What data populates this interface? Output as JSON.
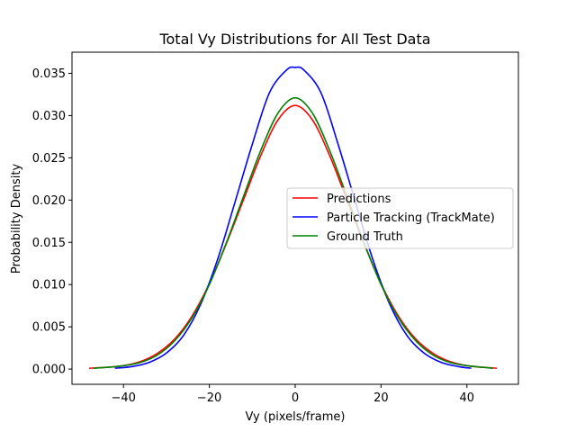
{
  "chart_data": {
    "type": "line",
    "title": "Total Vy Distributions for All Test Data",
    "xlabel": "Vy (pixels/frame)",
    "ylabel": "Probability Density",
    "xlim": [
      -52,
      52
    ],
    "ylim": [
      -0.0018,
      0.0375
    ],
    "xticks": [
      -40,
      -20,
      0,
      20,
      40
    ],
    "xtick_labels": [
      "−40",
      "−20",
      "0",
      "20",
      "40"
    ],
    "yticks": [
      0.0,
      0.005,
      0.01,
      0.015,
      0.02,
      0.025,
      0.03,
      0.035
    ],
    "ytick_labels": [
      "0.000",
      "0.005",
      "0.010",
      "0.015",
      "0.020",
      "0.025",
      "0.030",
      "0.035"
    ],
    "grid": false,
    "legend_position": "center-right",
    "series": [
      {
        "name": "Predictions",
        "color": "#ff0000",
        "x": [
          -48,
          -44,
          -40,
          -36,
          -32,
          -28,
          -24,
          -20,
          -16,
          -12,
          -8,
          -4,
          0,
          4,
          8,
          12,
          16,
          20,
          24,
          28,
          32,
          36,
          40,
          44,
          47
        ],
        "y": [
          0.0001,
          0.0002,
          0.0004,
          0.0009,
          0.0019,
          0.0036,
          0.0063,
          0.0101,
          0.0149,
          0.0201,
          0.0253,
          0.0295,
          0.0312,
          0.0295,
          0.0253,
          0.0201,
          0.0149,
          0.0101,
          0.0063,
          0.0036,
          0.0019,
          0.0009,
          0.0004,
          0.0002,
          0.0001
        ]
      },
      {
        "name": "Particle Tracking (TrackMate)",
        "color": "#0000ff",
        "x": [
          -42,
          -38,
          -34,
          -30,
          -26,
          -22,
          -18,
          -14,
          -10,
          -6,
          -2,
          0,
          2,
          6,
          10,
          14,
          18,
          22,
          26,
          30,
          34,
          38,
          41
        ],
        "y": [
          0.0001,
          0.0003,
          0.0008,
          0.0019,
          0.004,
          0.0077,
          0.0131,
          0.0198,
          0.0266,
          0.0327,
          0.0354,
          0.0357,
          0.0354,
          0.0327,
          0.0266,
          0.0198,
          0.0131,
          0.0077,
          0.004,
          0.0019,
          0.0008,
          0.0003,
          0.0001
        ]
      },
      {
        "name": "Ground Truth",
        "color": "#008000",
        "x": [
          -47,
          -44,
          -40,
          -36,
          -32,
          -28,
          -24,
          -20,
          -16,
          -12,
          -8,
          -4,
          0,
          4,
          8,
          12,
          16,
          20,
          24,
          28,
          32,
          36,
          40,
          44,
          46
        ],
        "y": [
          0.0001,
          0.0002,
          0.0004,
          0.0008,
          0.0017,
          0.0034,
          0.0061,
          0.01,
          0.015,
          0.0205,
          0.0259,
          0.0303,
          0.0321,
          0.0303,
          0.0259,
          0.0205,
          0.015,
          0.01,
          0.0061,
          0.0034,
          0.0017,
          0.0008,
          0.0004,
          0.0002,
          0.0001
        ]
      }
    ]
  }
}
